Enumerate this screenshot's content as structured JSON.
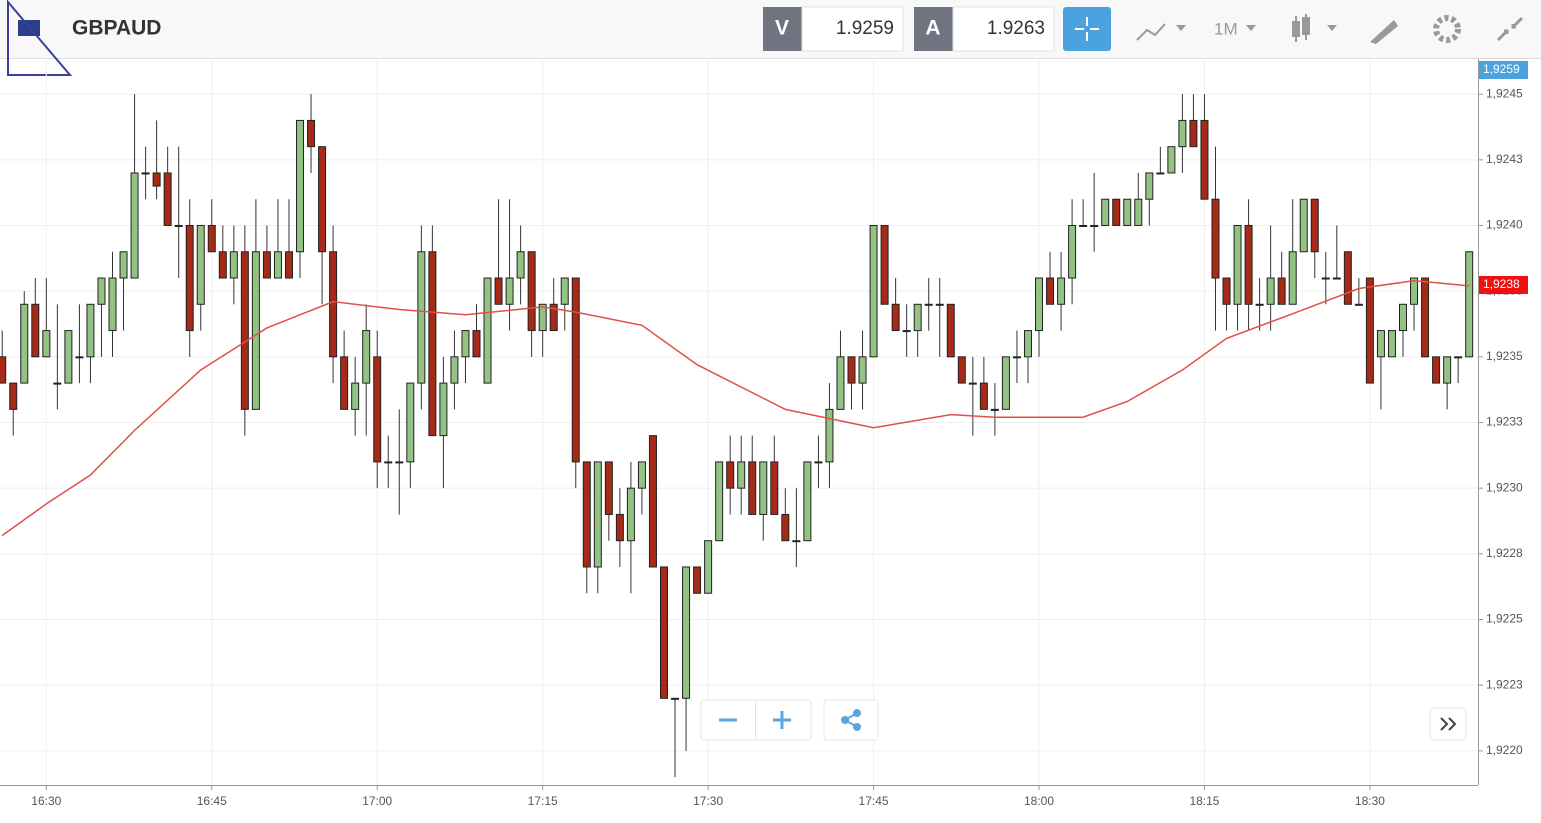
{
  "header": {
    "symbol": "GBPAUD",
    "sell_label": "V",
    "sell_price": "1.9259",
    "buy_label": "A",
    "buy_price": "1.9263",
    "timeframe": "1M"
  },
  "chart_data": {
    "type": "candlestick",
    "x": [
      986,
      987,
      988,
      989,
      990,
      991,
      992,
      993,
      994,
      995,
      996,
      997,
      998,
      999,
      1000,
      1001,
      1002,
      1003,
      1004,
      1005,
      1006,
      1007,
      1008,
      1009,
      1010,
      1011,
      1012,
      1013,
      1014,
      1015,
      1016,
      1017,
      1018,
      1019,
      1020,
      1021,
      1022,
      1023,
      1024,
      1025,
      1026,
      1027,
      1028,
      1029,
      1030,
      1031,
      1032,
      1033,
      1034,
      1035,
      1036,
      1037,
      1038,
      1039,
      1040,
      1041,
      1042,
      1043,
      1044,
      1045,
      1046,
      1047,
      1048,
      1049,
      1050,
      1051,
      1052,
      1053,
      1054,
      1055,
      1056,
      1057,
      1058,
      1059,
      1060,
      1061,
      1062,
      1063,
      1064,
      1065,
      1066,
      1067,
      1068,
      1069,
      1070,
      1071,
      1072,
      1073,
      1074,
      1075,
      1076,
      1077,
      1078,
      1079,
      1080,
      1081,
      1082,
      1083,
      1084,
      1085,
      1086,
      1087,
      1088,
      1089,
      1090,
      1091,
      1092,
      1093,
      1094,
      1095,
      1096,
      1097,
      1098,
      1099,
      1100,
      1101,
      1102,
      1103,
      1104,
      1105,
      1106,
      1107,
      1108,
      1109,
      1110,
      1111,
      1112,
      1113,
      1114,
      1115,
      1116,
      1117,
      1118,
      1119
    ],
    "open": [
      1.9235,
      1.9234,
      1.9234,
      1.9237,
      1.9235,
      1.9234,
      1.9234,
      1.9235,
      1.9235,
      1.9237,
      1.9236,
      1.9238,
      1.9238,
      1.9242,
      1.9242,
      1.9242,
      1.924,
      1.924,
      1.9237,
      1.924,
      1.9239,
      1.9238,
      1.9239,
      1.9233,
      1.9239,
      1.9238,
      1.9239,
      1.9239,
      1.9244,
      1.9243,
      1.9239,
      1.9235,
      1.9233,
      1.9234,
      1.9235,
      1.9231,
      1.9231,
      1.9231,
      1.9234,
      1.9239,
      1.9232,
      1.9234,
      1.9235,
      1.9236,
      1.9234,
      1.9238,
      1.9237,
      1.9238,
      1.9239,
      1.9236,
      1.9237,
      1.9237,
      1.9238,
      1.9231,
      1.9227,
      1.9231,
      1.9229,
      1.9228,
      1.923,
      1.9232,
      1.9227,
      1.9222,
      1.9222,
      1.9227,
      1.9226,
      1.9228,
      1.9231,
      1.923,
      1.9231,
      1.9229,
      1.9231,
      1.9229,
      1.9228,
      1.9228,
      1.9231,
      1.9231,
      1.9233,
      1.9235,
      1.9234,
      1.9235,
      1.924,
      1.9237,
      1.9236,
      1.9236,
      1.9237,
      1.9237,
      1.9237,
      1.9235,
      1.9234,
      1.9234,
      1.9233,
      1.9233,
      1.9235,
      1.9235,
      1.9236,
      1.9238,
      1.9237,
      1.9238,
      1.924,
      1.924,
      1.924,
      1.9241,
      1.924,
      1.924,
      1.9241,
      1.9242,
      1.9242,
      1.9243,
      1.9244,
      1.9244,
      1.9241,
      1.9238,
      1.9237,
      1.924,
      1.9237,
      1.9237,
      1.9238,
      1.9237,
      1.9239,
      1.9241,
      1.9238,
      1.9238,
      1.9239,
      1.9237,
      1.9238,
      1.9235,
      1.9235,
      1.9236,
      1.9237,
      1.9238,
      1.9235,
      1.9234,
      1.9235,
      1.9235
    ],
    "high": [
      1.9236,
      1.9234,
      1.92375,
      1.9238,
      1.9238,
      1.9237,
      1.9236,
      1.9237,
      1.9237,
      1.9238,
      1.9239,
      1.9239,
      1.9245,
      1.9243,
      1.9244,
      1.9243,
      1.9243,
      1.9241,
      1.924,
      1.9241,
      1.924,
      1.924,
      1.924,
      1.9241,
      1.924,
      1.9241,
      1.9241,
      1.9244,
      1.9245,
      1.9243,
      1.924,
      1.9236,
      1.9235,
      1.9237,
      1.9236,
      1.9232,
      1.9233,
      1.9234,
      1.924,
      1.924,
      1.9235,
      1.9236,
      1.9236,
      1.9237,
      1.9238,
      1.9241,
      1.9241,
      1.924,
      1.9239,
      1.9237,
      1.9238,
      1.9238,
      1.9238,
      1.9231,
      1.9231,
      1.9231,
      1.923,
      1.9231,
      1.9231,
      1.9232,
      1.9227,
      1.9222,
      1.9227,
      1.9227,
      1.9228,
      1.9231,
      1.9232,
      1.9232,
      1.9232,
      1.9231,
      1.9232,
      1.923,
      1.923,
      1.9231,
      1.9232,
      1.9234,
      1.9236,
      1.9235,
      1.9236,
      1.924,
      1.924,
      1.9238,
      1.9237,
      1.9237,
      1.9238,
      1.9238,
      1.9237,
      1.9235,
      1.9235,
      1.9235,
      1.9234,
      1.9235,
      1.9236,
      1.9236,
      1.9238,
      1.9239,
      1.9239,
      1.9241,
      1.9241,
      1.9242,
      1.9241,
      1.9241,
      1.9241,
      1.9242,
      1.9242,
      1.9243,
      1.9243,
      1.9245,
      1.9245,
      1.9245,
      1.9243,
      1.9238,
      1.924,
      1.9241,
      1.9238,
      1.924,
      1.9239,
      1.9241,
      1.9241,
      1.9241,
      1.9239,
      1.924,
      1.9239,
      1.9238,
      1.9238,
      1.9236,
      1.9236,
      1.9237,
      1.9238,
      1.9238,
      1.9235,
      1.9235,
      1.9235,
      1.9239
    ],
    "low": [
      1.9234,
      1.9232,
      1.9234,
      1.9235,
      1.9235,
      1.9233,
      1.9234,
      1.9234,
      1.9234,
      1.9235,
      1.9235,
      1.9236,
      1.9238,
      1.9241,
      1.9241,
      1.924,
      1.9238,
      1.9235,
      1.9236,
      1.9239,
      1.9238,
      1.9237,
      1.9232,
      1.9233,
      1.9238,
      1.9238,
      1.9238,
      1.9238,
      1.9242,
      1.9237,
      1.9234,
      1.9233,
      1.9232,
      1.9232,
      1.923,
      1.923,
      1.9229,
      1.923,
      1.9233,
      1.9232,
      1.923,
      1.9233,
      1.9234,
      1.9235,
      1.9234,
      1.9237,
      1.9236,
      1.9237,
      1.9235,
      1.9235,
      1.9236,
      1.9236,
      1.923,
      1.9226,
      1.9226,
      1.9228,
      1.9227,
      1.9226,
      1.9229,
      1.9227,
      1.9222,
      1.9219,
      1.922,
      1.9226,
      1.9226,
      1.9228,
      1.9229,
      1.9229,
      1.9229,
      1.9228,
      1.9229,
      1.9228,
      1.9227,
      1.9228,
      1.923,
      1.923,
      1.9233,
      1.9233,
      1.9233,
      1.9235,
      1.9237,
      1.9236,
      1.9235,
      1.9235,
      1.9236,
      1.9235,
      1.9235,
      1.9234,
      1.9232,
      1.9233,
      1.9232,
      1.9233,
      1.9234,
      1.9234,
      1.9235,
      1.9237,
      1.9236,
      1.9237,
      1.924,
      1.9239,
      1.924,
      1.924,
      1.924,
      1.924,
      1.924,
      1.9242,
      1.9242,
      1.9242,
      1.9243,
      1.9241,
      1.9236,
      1.9236,
      1.9236,
      1.9236,
      1.9236,
      1.9236,
      1.9237,
      1.9237,
      1.9239,
      1.9238,
      1.9237,
      1.9238,
      1.9237,
      1.9237,
      1.9234,
      1.9233,
      1.9235,
      1.9235,
      1.9236,
      1.9235,
      1.9234,
      1.9233,
      1.9234,
      1.9235
    ],
    "close": [
      1.9234,
      1.9233,
      1.9237,
      1.9235,
      1.9236,
      1.9234,
      1.9236,
      1.9235,
      1.9237,
      1.9238,
      1.9238,
      1.9239,
      1.9242,
      1.9242,
      1.92415,
      1.924,
      1.924,
      1.9236,
      1.924,
      1.9239,
      1.9238,
      1.9239,
      1.9233,
      1.9239,
      1.9238,
      1.9239,
      1.9238,
      1.9244,
      1.9243,
      1.9239,
      1.9235,
      1.9233,
      1.9234,
      1.9236,
      1.9231,
      1.9231,
      1.9231,
      1.9234,
      1.9239,
      1.9232,
      1.9234,
      1.9235,
      1.9236,
      1.9235,
      1.9238,
      1.9237,
      1.9238,
      1.9239,
      1.9236,
      1.9237,
      1.9236,
      1.9238,
      1.9231,
      1.9227,
      1.9231,
      1.9229,
      1.9228,
      1.923,
      1.9231,
      1.9227,
      1.9222,
      1.9222,
      1.9227,
      1.9226,
      1.9228,
      1.9231,
      1.923,
      1.9231,
      1.9229,
      1.9231,
      1.9229,
      1.9228,
      1.9228,
      1.9231,
      1.9231,
      1.9233,
      1.9235,
      1.9234,
      1.9235,
      1.924,
      1.9237,
      1.9236,
      1.9236,
      1.9237,
      1.9237,
      1.9237,
      1.9235,
      1.9234,
      1.9234,
      1.9233,
      1.9233,
      1.9235,
      1.9235,
      1.9236,
      1.9238,
      1.9237,
      1.9238,
      1.924,
      1.924,
      1.924,
      1.9241,
      1.924,
      1.9241,
      1.9241,
      1.9242,
      1.9242,
      1.9243,
      1.9244,
      1.9243,
      1.9241,
      1.9238,
      1.9237,
      1.924,
      1.9237,
      1.9237,
      1.9238,
      1.9237,
      1.9239,
      1.9241,
      1.9239,
      1.9238,
      1.9238,
      1.9237,
      1.9237,
      1.9234,
      1.9236,
      1.9236,
      1.9237,
      1.9238,
      1.9235,
      1.9234,
      1.9235,
      1.9235,
      1.9239
    ],
    "up_color": "#93c283",
    "down_color": "#a52a17",
    "ma": {
      "color": "#e0504a",
      "x": [
        986,
        990,
        994,
        998,
        1004,
        1010,
        1016,
        1022,
        1028,
        1035,
        1038,
        1044,
        1049,
        1057,
        1065,
        1072,
        1076,
        1084,
        1088,
        1093,
        1097,
        1104,
        1109,
        1114,
        1119
      ],
      "values": [
        1.92282,
        1.92294,
        1.92305,
        1.92322,
        1.92345,
        1.92361,
        1.92371,
        1.92368,
        1.92366,
        1.92369,
        1.92367,
        1.92362,
        1.92347,
        1.9233,
        1.92323,
        1.92328,
        1.92327,
        1.92327,
        1.92333,
        1.92345,
        1.92357,
        1.92368,
        1.92376,
        1.92379,
        1.92377
      ]
    },
    "xlim": [
      985.8,
      1119.8
    ],
    "ylim": [
      1.92187,
      1.92463
    ],
    "xticks": [
      {
        "value": 990,
        "label": "16:30"
      },
      {
        "value": 1005,
        "label": "16:45"
      },
      {
        "value": 1020,
        "label": "17:00"
      },
      {
        "value": 1035,
        "label": "17:15"
      },
      {
        "value": 1050,
        "label": "17:30"
      },
      {
        "value": 1065,
        "label": "17:45"
      },
      {
        "value": 1080,
        "label": "18:00"
      },
      {
        "value": 1095,
        "label": "18:15"
      },
      {
        "value": 1110,
        "label": "18:30"
      }
    ],
    "yticks": [
      {
        "value": 1.922,
        "label": "1,9220"
      },
      {
        "value": 1.92225,
        "label": "1,9223"
      },
      {
        "value": 1.9225,
        "label": "1,9225"
      },
      {
        "value": 1.92275,
        "label": "1,9228"
      },
      {
        "value": 1.923,
        "label": "1,9230"
      },
      {
        "value": 1.92325,
        "label": "1,9233"
      },
      {
        "value": 1.9235,
        "label": "1,9235"
      },
      {
        "value": 1.92375,
        "label": "1,9238"
      },
      {
        "value": 1.924,
        "label": "1,9240"
      },
      {
        "value": 1.92425,
        "label": "1,9243"
      },
      {
        "value": 1.9245,
        "label": "1,9245"
      }
    ],
    "grid": true,
    "price_tags": [
      "1,9259",
      "1,9238"
    ]
  }
}
